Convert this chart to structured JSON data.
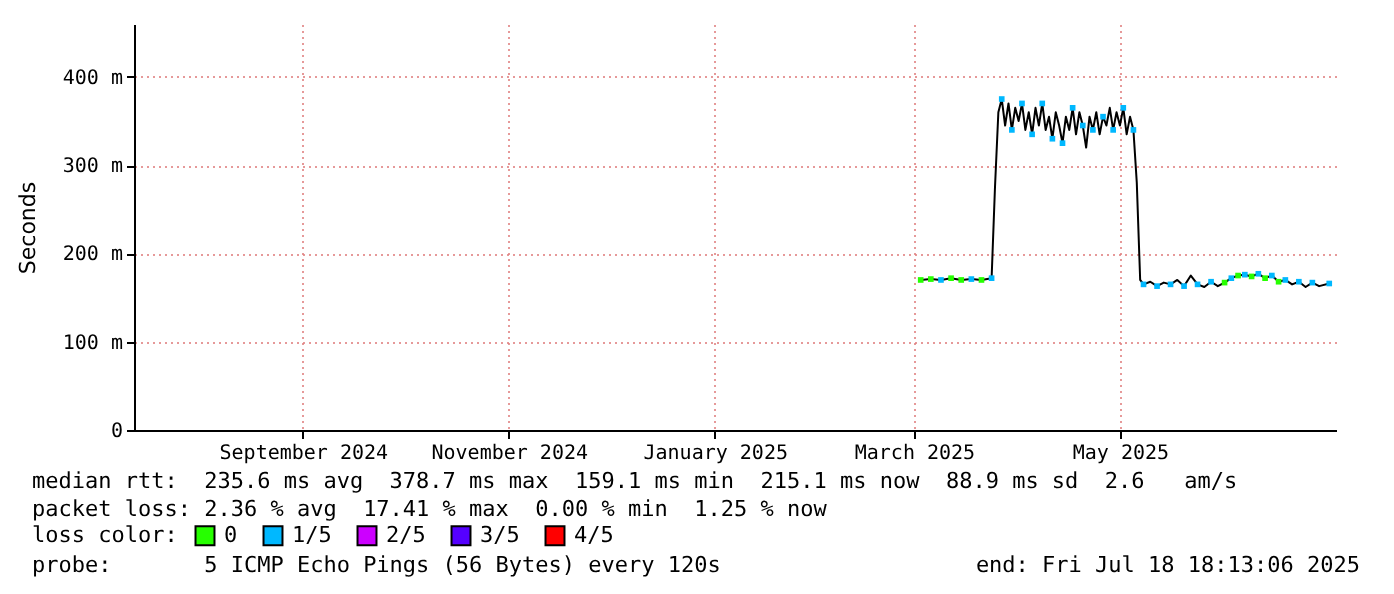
{
  "chart_data": {
    "type": "line",
    "ylabel": "Seconds",
    "legend_title": "loss color:",
    "legend": "bottom",
    "grid": true,
    "xlim": [
      "2024-07-27",
      "2025-07-18"
    ],
    "ylim": [
      0,
      460
    ],
    "xticks": [
      {
        "value": "2024-09-15",
        "label": "September 2024"
      },
      {
        "value": "2024-11-15",
        "label": "November 2024"
      },
      {
        "value": "2025-01-15",
        "label": "January 2025"
      },
      {
        "value": "2025-03-15",
        "label": "March 2025"
      },
      {
        "value": "2025-05-15",
        "label": "May 2025"
      }
    ],
    "yticks": [
      0,
      {
        "value": 100,
        "label": "100 m"
      },
      {
        "value": 200,
        "label": "200 m"
      },
      {
        "value": 300,
        "label": "300 m"
      },
      {
        "value": 400,
        "label": "400 m"
      }
    ],
    "series": [
      {
        "color": "#000000",
        "x": [
          "2025-03-17",
          "2025-03-20",
          "2025-03-23",
          "2025-03-26",
          "2025-03-29",
          "2025-04-01",
          "2025-04-04",
          "2025-04-07",
          "2025-04-08",
          "2025-04-09",
          "2025-04-10",
          "2025-04-11",
          "2025-04-12",
          "2025-04-13",
          "2025-04-14",
          "2025-04-15",
          "2025-04-16",
          "2025-04-17",
          "2025-04-18",
          "2025-04-19",
          "2025-04-20",
          "2025-04-21",
          "2025-04-22",
          "2025-04-23",
          "2025-04-24",
          "2025-04-25",
          "2025-04-26",
          "2025-04-27",
          "2025-04-28",
          "2025-04-29",
          "2025-04-30",
          "2025-05-01",
          "2025-05-02",
          "2025-05-03",
          "2025-05-04",
          "2025-05-05",
          "2025-05-06",
          "2025-05-07",
          "2025-05-08",
          "2025-05-09",
          "2025-05-10",
          "2025-05-11",
          "2025-05-12",
          "2025-05-13",
          "2025-05-14",
          "2025-05-15",
          "2025-05-16",
          "2025-05-17",
          "2025-05-18",
          "2025-05-19",
          "2025-05-20",
          "2025-05-21",
          "2025-05-22",
          "2025-05-24",
          "2025-05-26",
          "2025-05-28",
          "2025-05-30",
          "2025-06-01",
          "2025-06-03",
          "2025-06-05",
          "2025-06-07",
          "2025-06-09",
          "2025-06-11",
          "2025-06-13",
          "2025-06-15",
          "2025-06-17",
          "2025-06-19",
          "2025-06-21",
          "2025-06-23",
          "2025-06-25",
          "2025-06-27",
          "2025-06-29",
          "2025-07-01",
          "2025-07-03",
          "2025-07-05",
          "2025-07-07",
          "2025-07-09",
          "2025-07-11",
          "2025-07-13",
          "2025-07-16"
        ],
        "values": [
          170,
          171,
          170,
          172,
          170,
          171,
          170,
          172,
          275,
          360,
          375,
          345,
          370,
          340,
          365,
          350,
          370,
          340,
          360,
          335,
          365,
          345,
          370,
          340,
          355,
          330,
          360,
          345,
          325,
          355,
          340,
          365,
          335,
          360,
          345,
          320,
          355,
          340,
          360,
          335,
          355,
          345,
          365,
          340,
          360,
          345,
          365,
          335,
          355,
          340,
          280,
          170,
          165,
          168,
          163,
          167,
          165,
          170,
          163,
          175,
          165,
          162,
          168,
          163,
          167,
          172,
          175,
          176,
          174,
          177,
          172,
          175,
          168,
          170,
          165,
          168,
          162,
          167,
          163,
          166
        ]
      },
      {
        "type": "scatter",
        "marker": "square",
        "name": "0",
        "color": "#26ff00",
        "x": [
          "2025-03-17",
          "2025-03-20",
          "2025-03-26",
          "2025-03-29",
          "2025-04-04",
          "2025-06-15",
          "2025-06-19",
          "2025-06-23",
          "2025-06-27",
          "2025-07-01"
        ],
        "values": [
          170,
          171,
          172,
          170,
          170,
          167,
          175,
          174,
          172,
          168
        ]
      },
      {
        "type": "scatter",
        "marker": "square",
        "name": "1/5",
        "color": "#00b8ff",
        "x": [
          "2025-03-23",
          "2025-04-01",
          "2025-04-07",
          "2025-04-10",
          "2025-04-13",
          "2025-04-16",
          "2025-04-19",
          "2025-04-22",
          "2025-04-25",
          "2025-04-28",
          "2025-05-01",
          "2025-05-04",
          "2025-05-07",
          "2025-05-10",
          "2025-05-13",
          "2025-05-16",
          "2025-05-19",
          "2025-05-22",
          "2025-05-26",
          "2025-05-30",
          "2025-06-03",
          "2025-06-07",
          "2025-06-11",
          "2025-06-17",
          "2025-06-21",
          "2025-06-25",
          "2025-06-29",
          "2025-07-03",
          "2025-07-07",
          "2025-07-11",
          "2025-07-16"
        ],
        "values": [
          170,
          171,
          172,
          375,
          340,
          370,
          335,
          370,
          330,
          325,
          365,
          345,
          340,
          355,
          340,
          365,
          340,
          165,
          163,
          165,
          163,
          165,
          168,
          172,
          176,
          177,
          175,
          170,
          168,
          167,
          166
        ]
      },
      {
        "type": "scatter",
        "marker": "square",
        "name": "2/5",
        "color": "#cc00ff"
      },
      {
        "type": "scatter",
        "marker": "square",
        "name": "3/5",
        "color": "#5500ff"
      },
      {
        "type": "scatter",
        "marker": "square",
        "name": "4/5",
        "color": "#ff0000"
      }
    ],
    "annotations": [
      "median rtt:  235.6 ms avg  378.7 ms max  159.1 ms min  215.1 ms now  88.9 ms sd  2.6   am/s",
      "packet loss: 2.36 % avg  17.41 % max  0.00 % min  1.25 % now",
      "probe:       5 ICMP Echo Pings (56 Bytes) every 120s",
      "end: Fri Jul 18 18:13:06 2025"
    ]
  }
}
